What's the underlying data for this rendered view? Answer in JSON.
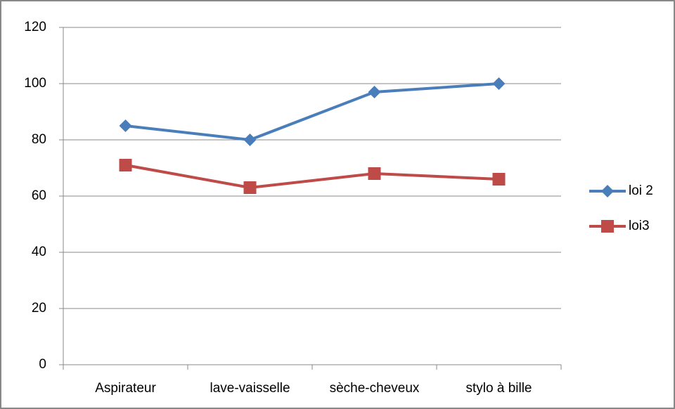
{
  "chart_data": {
    "type": "line",
    "categories": [
      "Aspirateur",
      "lave-vaisselle",
      "sèche-cheveux",
      "stylo à bille"
    ],
    "series": [
      {
        "name": "loi 2",
        "color": "#4a7ebb",
        "marker": "diamond",
        "values": [
          85,
          80,
          97,
          100
        ]
      },
      {
        "name": "loi3",
        "color": "#be4b48",
        "marker": "square",
        "values": [
          71,
          63,
          68,
          66
        ]
      }
    ],
    "ylim": [
      0,
      120
    ],
    "yticks": [
      0,
      20,
      40,
      60,
      80,
      100,
      120
    ],
    "grid": true,
    "legend": "right"
  }
}
